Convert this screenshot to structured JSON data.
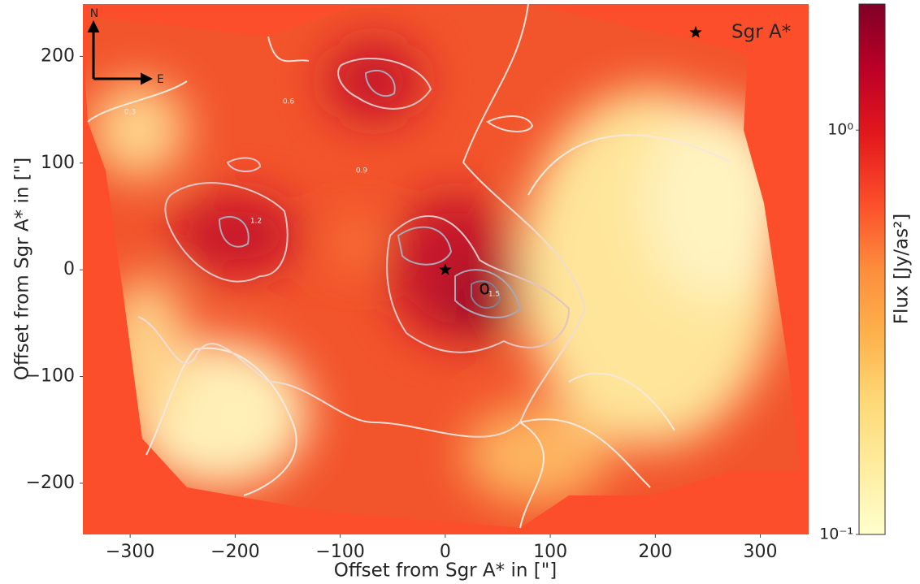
{
  "chart_data": {
    "type": "heatmap",
    "xlabel": "Offset from Sgr A* in [\"]",
    "ylabel": "Offset from Sgr A* in [\"]",
    "xlim": [
      -345,
      346
    ],
    "ylim": [
      -248,
      249
    ],
    "xticks": [
      {
        "value": -300,
        "label": "−300"
      },
      {
        "value": -200,
        "label": "−200"
      },
      {
        "value": -100,
        "label": "−100"
      },
      0,
      100,
      200,
      300
    ],
    "yticks": [
      {
        "value": -200,
        "label": "−200"
      },
      {
        "value": -100,
        "label": "−100"
      },
      0,
      100,
      200
    ],
    "colorbar": {
      "label": "Flux [Jy/as²]",
      "scale": "log",
      "clim": [
        0.1,
        2.05
      ],
      "ticks": [
        {
          "value": 0.1,
          "label": "10⁻¹"
        },
        {
          "value": 1,
          "label": "10⁰"
        }
      ],
      "colormap": [
        "#ffffcc",
        "#ffeda0",
        "#fed976",
        "#feb24c",
        "#fd8d3c",
        "#fc4e2a",
        "#e31a1c",
        "#bd0026",
        "#800026"
      ]
    },
    "contour_levels": [
      0.3,
      0.6,
      0.9,
      1.2,
      1.5
    ],
    "series": [
      {
        "name": "Sgr A*",
        "color": "#000000",
        "x": [
          0
        ],
        "y": [
          0
        ]
      }
    ],
    "legend": "upper right",
    "compass": [
      "N",
      "E"
    ]
  }
}
